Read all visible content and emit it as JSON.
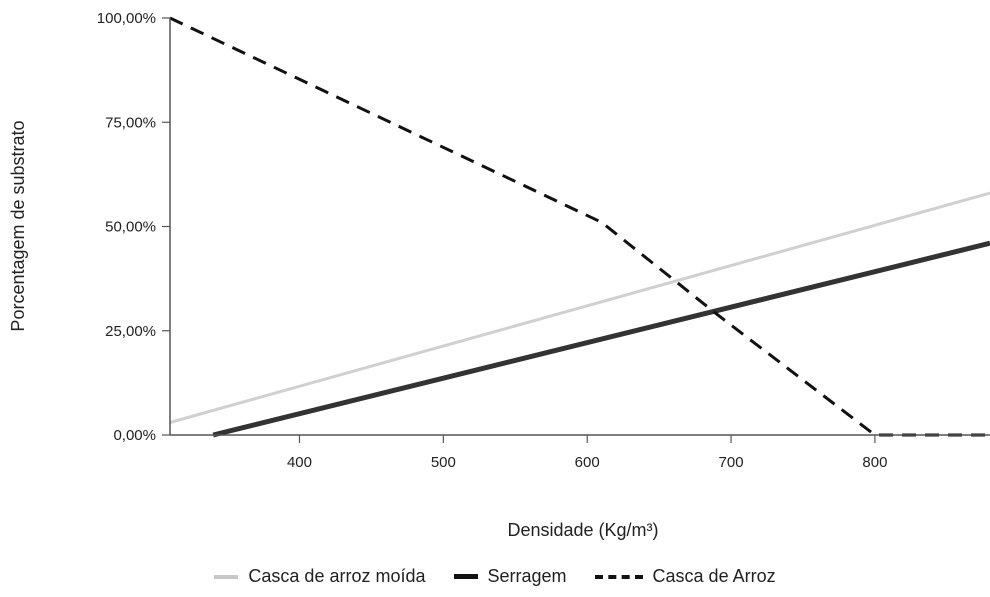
{
  "chart_data": {
    "type": "line",
    "title": "",
    "xlabel": "Densidade (Kg/m³)",
    "ylabel": "Porcentagem de substrato",
    "xlim": [
      310,
      880
    ],
    "ylim": [
      0,
      100
    ],
    "x_ticks": [
      400,
      500,
      600,
      700,
      800
    ],
    "y_ticks": [
      0,
      25,
      50,
      75,
      100
    ],
    "y_tick_labels": [
      "0,00%",
      "25,00%",
      "50,00%",
      "75,00%",
      "100,00%"
    ],
    "grid": false,
    "legend_position": "bottom",
    "series": [
      {
        "name": "Casca de arroz moída",
        "color": "#d0d0d0",
        "style": "solid",
        "points": [
          [
            310,
            3
          ],
          [
            880,
            58
          ]
        ]
      },
      {
        "name": "Serragem",
        "color": "#333333",
        "style": "solid",
        "points": [
          [
            340,
            0
          ],
          [
            880,
            46
          ]
        ]
      },
      {
        "name": "Casca de Arroz",
        "color": "#111111",
        "style": "dashed",
        "points": [
          [
            310,
            100
          ],
          [
            610,
            51
          ],
          [
            690,
            29
          ],
          [
            800,
            0
          ],
          [
            880,
            0
          ]
        ]
      }
    ]
  }
}
